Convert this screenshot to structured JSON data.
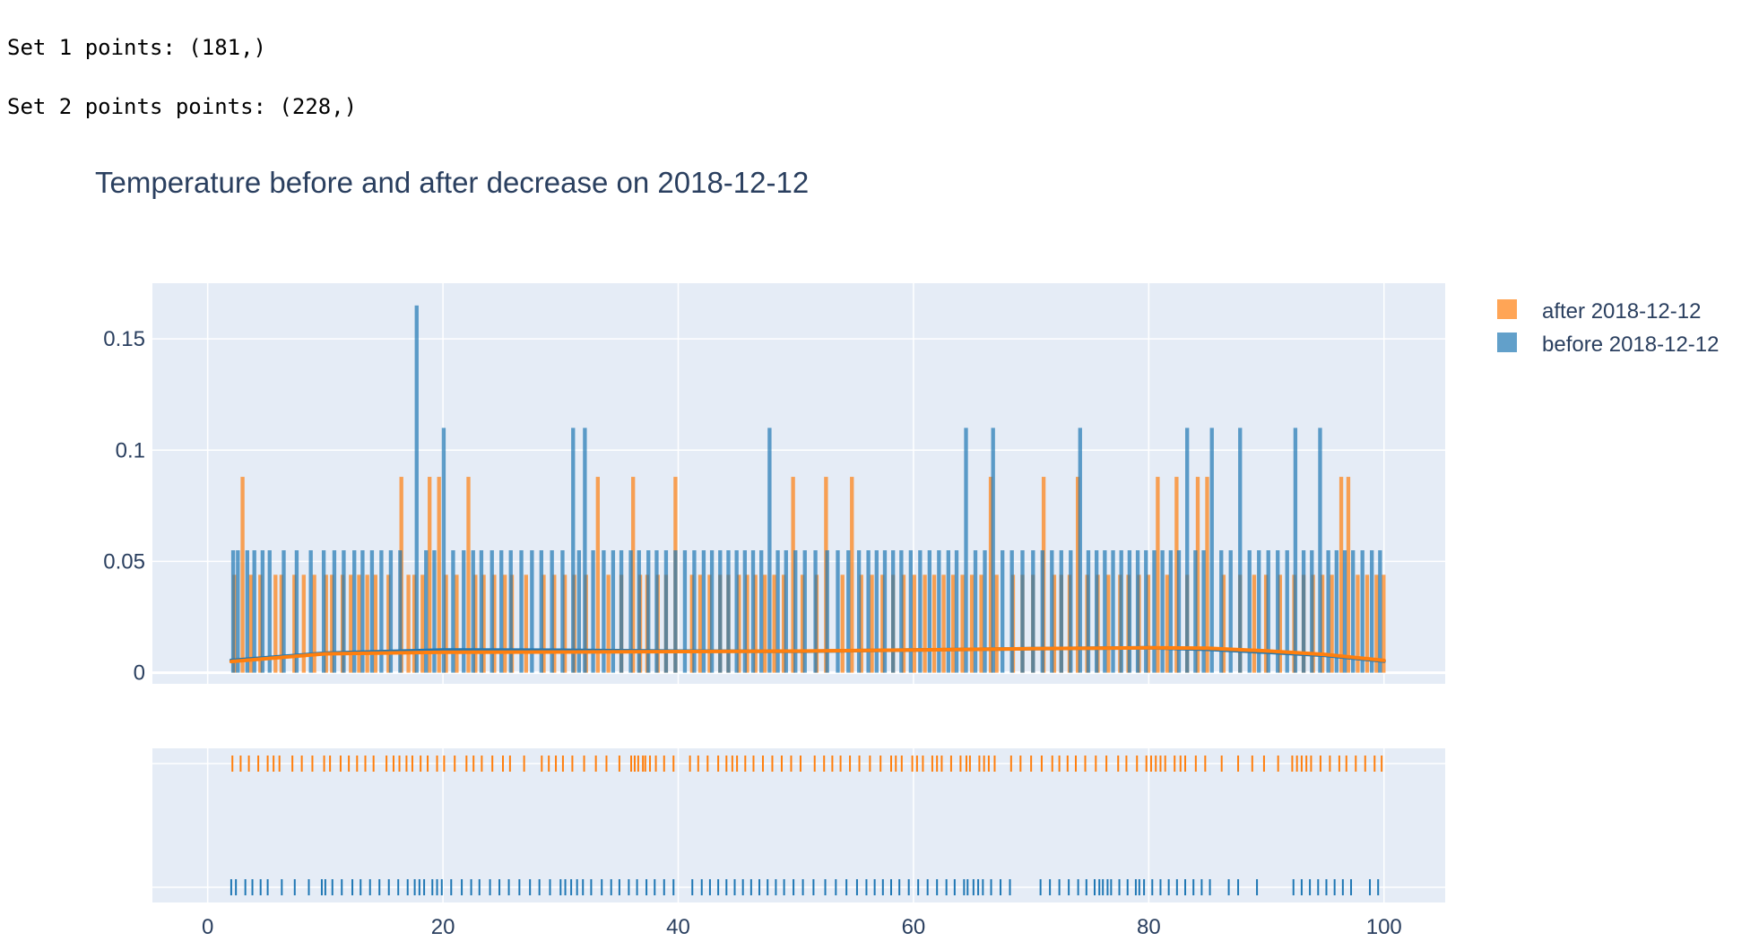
{
  "console_output": [
    "Set 1 points: (181,)",
    "Set 2 points points: (228,)"
  ],
  "colors": {
    "after": "#ff7f0e",
    "before": "#1f77b4",
    "plot_bg": "#e5ecf6",
    "grid": "#ffffff",
    "text": "#2a3f5f"
  },
  "chart_data": {
    "type": "bar",
    "title": "Temperature before and after decrease on 2018-12-12",
    "xlabel": "",
    "ylabel": "",
    "xlim": [
      -4.7,
      105.2
    ],
    "ylim": [
      -0.005,
      0.175
    ],
    "x_ticks": [
      0,
      20,
      40,
      60,
      80,
      100
    ],
    "y_ticks": [
      0,
      0.05,
      0.1,
      0.15
    ],
    "y_tick_labels": [
      "0",
      "0.05",
      "0.1",
      "0.15"
    ],
    "x_tick_labels": [
      "0",
      "20",
      "40",
      "60",
      "80",
      "100"
    ],
    "grid": true,
    "legend_position": "top-right",
    "bin_width": 0.33,
    "series": [
      {
        "name": "after 2018-12-12",
        "key": "after",
        "histogram_x": [
          2.1,
          2.8,
          3.5,
          4.3,
          5.6,
          6.1,
          7.2,
          8.0,
          8.9,
          9.9,
          10.4,
          11.3,
          12.0,
          12.7,
          13.4,
          14.1,
          15.2,
          16.3,
          16.9,
          17.4,
          18.1,
          18.7,
          19.5,
          20.1,
          21.0,
          22.0,
          22.6,
          23.3,
          24.2,
          25.1,
          25.7,
          26.9,
          28.4,
          29.3,
          30.2,
          31.0,
          32.0,
          33.0,
          33.9,
          35.0,
          36.0,
          36.6,
          37.2,
          38.1,
          38.8,
          39.6,
          41.0,
          41.7,
          42.5,
          43.4,
          44.1,
          45.0,
          45.7,
          46.4,
          47.2,
          48.0,
          48.8,
          49.6,
          50.4,
          51.6,
          52.4,
          53.8,
          54.6,
          55.4,
          56.3,
          57.2,
          58.1,
          59.0,
          59.9,
          60.8,
          61.6,
          62.4,
          63.2,
          64.0,
          64.8,
          65.6,
          66.4,
          66.9,
          68.3,
          69.1,
          70.0,
          70.9,
          71.8,
          72.4,
          73.1,
          73.8,
          74.6,
          75.5,
          76.4,
          77.4,
          78.1,
          79.0,
          79.8,
          80.6,
          81.4,
          82.2,
          83.1,
          84.0,
          84.8,
          86.2,
          87.6,
          88.8,
          89.8,
          91.0,
          92.2,
          93.0,
          93.8,
          94.6,
          95.4,
          96.2,
          96.8,
          97.6,
          98.4,
          99.2,
          99.8
        ],
        "histogram_y": [
          0.044,
          0.088,
          0.044,
          0.044,
          0.044,
          0.044,
          0.044,
          0.044,
          0.044,
          0.044,
          0.044,
          0.044,
          0.044,
          0.044,
          0.044,
          0.044,
          0.044,
          0.088,
          0.044,
          0.044,
          0.044,
          0.088,
          0.088,
          0.044,
          0.044,
          0.088,
          0.044,
          0.044,
          0.044,
          0.044,
          0.044,
          0.044,
          0.044,
          0.044,
          0.044,
          0.044,
          0.044,
          0.088,
          0.044,
          0.044,
          0.088,
          0.044,
          0.044,
          0.044,
          0.044,
          0.088,
          0.044,
          0.044,
          0.044,
          0.044,
          0.044,
          0.044,
          0.044,
          0.044,
          0.044,
          0.044,
          0.044,
          0.088,
          0.044,
          0.044,
          0.088,
          0.044,
          0.088,
          0.044,
          0.044,
          0.044,
          0.044,
          0.044,
          0.044,
          0.044,
          0.044,
          0.044,
          0.044,
          0.044,
          0.044,
          0.044,
          0.088,
          0.044,
          0.044,
          0.044,
          0.044,
          0.088,
          0.044,
          0.044,
          0.044,
          0.088,
          0.044,
          0.044,
          0.044,
          0.044,
          0.044,
          0.044,
          0.044,
          0.088,
          0.044,
          0.088,
          0.044,
          0.088,
          0.088,
          0.044,
          0.044,
          0.044,
          0.044,
          0.044,
          0.044,
          0.044,
          0.044,
          0.044,
          0.044,
          0.088,
          0.088,
          0.044,
          0.044,
          0.044,
          0.044
        ],
        "kde_x": [
          2,
          10,
          20,
          30,
          40,
          50,
          60,
          70,
          80,
          85,
          90,
          95,
          100
        ],
        "kde_y": [
          0.005,
          0.0085,
          0.0092,
          0.0093,
          0.0095,
          0.0097,
          0.0102,
          0.0108,
          0.0112,
          0.011,
          0.0098,
          0.0082,
          0.0055
        ],
        "rug": [
          2.1,
          2.8,
          3.5,
          4.3,
          5.1,
          5.6,
          6.1,
          7.2,
          8.0,
          8.9,
          9.9,
          10.4,
          11.3,
          12.0,
          12.7,
          13.4,
          14.1,
          15.2,
          15.8,
          16.3,
          16.9,
          17.4,
          18.1,
          18.7,
          19.5,
          20.1,
          21.0,
          22.0,
          22.6,
          23.3,
          24.2,
          25.1,
          25.7,
          26.9,
          28.4,
          29.0,
          29.6,
          30.2,
          31.0,
          32.0,
          33.0,
          33.9,
          35.0,
          36.0,
          36.3,
          36.6,
          37.0,
          37.2,
          37.6,
          38.1,
          38.8,
          39.6,
          41.0,
          41.7,
          42.5,
          43.4,
          44.1,
          44.6,
          45.0,
          45.7,
          46.4,
          47.2,
          48.0,
          48.8,
          49.6,
          50.4,
          51.6,
          52.4,
          53.1,
          53.8,
          54.6,
          55.4,
          56.3,
          57.2,
          58.1,
          58.5,
          59.0,
          59.9,
          60.3,
          60.8,
          61.6,
          62.0,
          62.4,
          63.2,
          64.0,
          64.5,
          64.8,
          65.6,
          66.0,
          66.4,
          66.9,
          68.3,
          69.1,
          70.0,
          70.9,
          71.8,
          72.4,
          73.1,
          73.8,
          74.6,
          75.5,
          76.4,
          77.4,
          78.1,
          79.0,
          79.8,
          80.2,
          80.6,
          81.0,
          81.4,
          82.2,
          82.7,
          83.1,
          84.0,
          84.8,
          86.2,
          87.6,
          88.8,
          89.8,
          91.0,
          92.2,
          92.6,
          93.0,
          93.4,
          93.8,
          94.6,
          95.4,
          96.2,
          96.8,
          97.6,
          98.4,
          99.2,
          99.8
        ]
      },
      {
        "name": "before 2018-12-12",
        "key": "before",
        "histogram_x": [
          2.0,
          2.4,
          3.2,
          3.8,
          4.5,
          5.1,
          6.3,
          7.4,
          8.6,
          9.7,
          10.6,
          11.4,
          12.3,
          13.0,
          13.8,
          14.6,
          15.4,
          16.2,
          17.6,
          18.4,
          19.1,
          19.9,
          20.7,
          21.6,
          22.4,
          23.1,
          24.0,
          24.8,
          25.6,
          26.5,
          27.4,
          28.2,
          29.1,
          30.0,
          30.9,
          31.4,
          31.9,
          32.6,
          33.5,
          34.3,
          35.0,
          35.8,
          36.5,
          37.3,
          38.0,
          38.8,
          39.6,
          40.4,
          41.2,
          42.0,
          42.7,
          43.4,
          44.1,
          44.8,
          45.5,
          46.2,
          46.9,
          47.6,
          48.3,
          49.0,
          49.8,
          50.6,
          51.5,
          52.5,
          53.4,
          54.3,
          55.2,
          56.0,
          56.7,
          57.4,
          58.1,
          58.8,
          59.6,
          60.4,
          61.2,
          62.0,
          62.8,
          63.5,
          64.3,
          65.1,
          65.9,
          66.6,
          67.4,
          68.2,
          69.1,
          70.0,
          70.8,
          71.6,
          72.4,
          73.2,
          74.0,
          74.7,
          75.4,
          76.1,
          76.8,
          77.5,
          78.2,
          78.9,
          79.6,
          80.3,
          81.0,
          81.7,
          82.4,
          83.1,
          83.8,
          84.5,
          85.2,
          86.0,
          86.8,
          87.6,
          88.4,
          89.2,
          90.0,
          90.8,
          91.6,
          92.3,
          93.0,
          93.7,
          94.4,
          95.1,
          95.8,
          96.5,
          97.2,
          98.0,
          98.8,
          99.5
        ],
        "histogram_y": [
          0.055,
          0.055,
          0.055,
          0.055,
          0.055,
          0.055,
          0.055,
          0.055,
          0.055,
          0.055,
          0.055,
          0.055,
          0.055,
          0.055,
          0.055,
          0.055,
          0.055,
          0.055,
          0.165,
          0.055,
          0.055,
          0.11,
          0.055,
          0.055,
          0.055,
          0.055,
          0.055,
          0.055,
          0.055,
          0.055,
          0.055,
          0.055,
          0.055,
          0.055,
          0.11,
          0.055,
          0.11,
          0.055,
          0.055,
          0.055,
          0.055,
          0.055,
          0.055,
          0.055,
          0.055,
          0.055,
          0.055,
          0.055,
          0.055,
          0.055,
          0.055,
          0.055,
          0.055,
          0.055,
          0.055,
          0.055,
          0.055,
          0.11,
          0.055,
          0.055,
          0.055,
          0.055,
          0.055,
          0.055,
          0.055,
          0.055,
          0.055,
          0.055,
          0.055,
          0.055,
          0.055,
          0.055,
          0.055,
          0.055,
          0.055,
          0.055,
          0.055,
          0.055,
          0.11,
          0.055,
          0.055,
          0.11,
          0.055,
          0.055,
          0.055,
          0.055,
          0.055,
          0.055,
          0.055,
          0.055,
          0.11,
          0.055,
          0.055,
          0.055,
          0.055,
          0.055,
          0.055,
          0.055,
          0.055,
          0.055,
          0.055,
          0.055,
          0.055,
          0.11,
          0.055,
          0.055,
          0.11,
          0.055,
          0.055,
          0.11,
          0.055,
          0.055,
          0.055,
          0.055,
          0.055,
          0.11,
          0.055,
          0.055,
          0.11,
          0.055,
          0.055,
          0.055,
          0.055,
          0.055,
          0.055,
          0.055
        ],
        "kde_x": [
          2,
          10,
          20,
          30,
          40,
          50,
          60,
          70,
          80,
          85,
          90,
          95,
          100
        ],
        "kde_y": [
          0.0055,
          0.0088,
          0.0102,
          0.0101,
          0.0097,
          0.0096,
          0.0102,
          0.0108,
          0.0112,
          0.0105,
          0.0092,
          0.0078,
          0.0052
        ],
        "rug": [
          2.0,
          2.4,
          3.2,
          3.8,
          4.5,
          5.1,
          6.3,
          7.4,
          8.6,
          9.7,
          10.0,
          10.6,
          11.4,
          12.3,
          13.0,
          13.8,
          14.6,
          15.4,
          16.2,
          17.0,
          17.6,
          18.0,
          18.4,
          19.1,
          19.5,
          19.9,
          20.7,
          21.6,
          22.4,
          23.1,
          24.0,
          24.8,
          25.6,
          26.5,
          27.4,
          28.2,
          29.1,
          30.0,
          30.4,
          30.9,
          31.4,
          31.9,
          32.6,
          33.5,
          34.3,
          35.0,
          35.8,
          36.5,
          37.3,
          38.0,
          38.8,
          39.6,
          41.2,
          42.0,
          42.7,
          43.4,
          44.1,
          44.8,
          45.5,
          46.2,
          46.9,
          47.6,
          48.3,
          49.0,
          49.8,
          50.6,
          51.5,
          52.5,
          53.4,
          54.3,
          55.2,
          56.0,
          56.7,
          57.4,
          58.1,
          58.8,
          59.6,
          60.4,
          61.2,
          62.0,
          62.8,
          63.5,
          64.3,
          64.6,
          65.1,
          65.5,
          65.9,
          66.6,
          67.4,
          68.2,
          70.8,
          71.6,
          72.4,
          73.2,
          74.0,
          74.7,
          75.4,
          75.8,
          76.1,
          76.5,
          76.8,
          77.5,
          78.2,
          78.9,
          79.2,
          79.6,
          80.3,
          81.0,
          81.7,
          82.4,
          83.1,
          83.8,
          84.5,
          85.2,
          86.8,
          87.6,
          89.2,
          92.3,
          93.0,
          93.7,
          94.4,
          95.1,
          95.8,
          96.5,
          97.2,
          98.8,
          99.5
        ]
      }
    ]
  }
}
